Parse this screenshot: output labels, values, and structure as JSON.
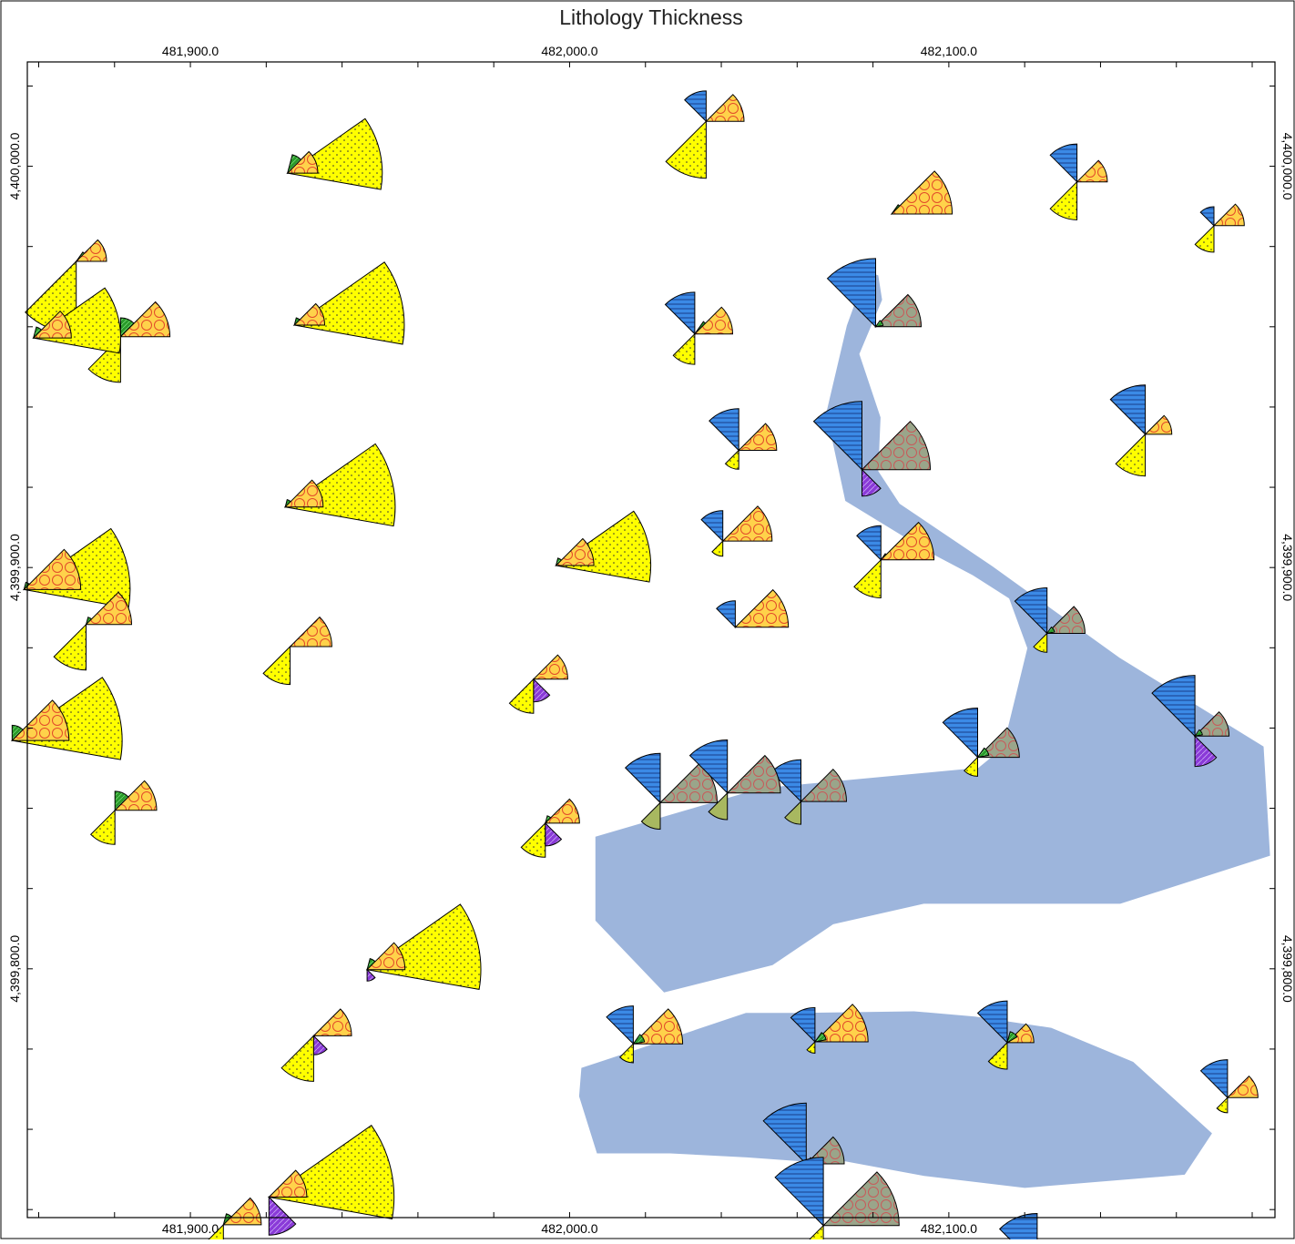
{
  "map": {
    "title": "Lithology Thickness",
    "x_ticks": [
      {
        "value": 481900,
        "label": "481,900.0"
      },
      {
        "value": 482000,
        "label": "482,000.0"
      },
      {
        "value": 482100,
        "label": "482,100.0"
      }
    ],
    "y_ticks": [
      {
        "value": 4400000,
        "label": "4,400,000.0"
      },
      {
        "value": 4399900,
        "label": "4,399,900.0"
      },
      {
        "value": 4399800,
        "label": "4,399,800.0"
      }
    ],
    "x_range": [
      481857,
      482186
    ],
    "y_range": [
      4399738,
      4400026
    ],
    "minor_step": 20,
    "colors": {
      "frame": "#000000",
      "region_fill": "#9db5dc",
      "sand": "#ffff00",
      "gravel": "#ffd24a",
      "gravel_circles": "#e24a2a",
      "limestone": "#3b8ae6",
      "limestone_lines": "#1a3f8a",
      "shale": "#9aa58a",
      "shale_circles": "#c85a5a",
      "green": "#2a9a2a",
      "purple": "#8a3ad8",
      "olive": "#a8b860"
    },
    "regions": [
      [
        [
          482078.3,
          4399973.8
        ],
        [
          482081.4,
          4399972.8
        ],
        [
          482082.4,
          4399966.7
        ],
        [
          482076.4,
          4399953.2
        ],
        [
          482082.0,
          4399937.4
        ],
        [
          482081.4,
          4399924.0
        ],
        [
          482087.0,
          4399915.9
        ],
        [
          482111.5,
          4399900.3
        ],
        [
          482145.0,
          4399877.5
        ],
        [
          482183.0,
          4399855.4
        ],
        [
          482184.7,
          4399828.2
        ],
        [
          482145.2,
          4399816.2
        ],
        [
          482093.4,
          4399816.2
        ],
        [
          482069.5,
          4399811.1
        ],
        [
          482053.5,
          4399800.9
        ],
        [
          482024.9,
          4399794.1
        ],
        [
          482006.8,
          4399812.0
        ],
        [
          482006.8,
          4399832.9
        ],
        [
          482050.5,
          4399845.0
        ],
        [
          482107.8,
          4399850.1
        ],
        [
          482114.3,
          4399855.1
        ],
        [
          482120.7,
          4399879.9
        ],
        [
          482115.9,
          4399892.3
        ],
        [
          482106.3,
          4399898.1
        ],
        [
          482095.2,
          4399903.6
        ],
        [
          482072.7,
          4399916.6
        ],
        [
          482067.7,
          4399938.6
        ],
        [
          482073.1,
          4399960.3
        ],
        [
          482078.3,
          4399973.8
        ]
      ],
      [
        [
          482046.7,
          4399753.0
        ],
        [
          482061.3,
          4399752.0
        ],
        [
          482072.7,
          4399752.0
        ],
        [
          482093.5,
          4399748.4
        ],
        [
          482120.0,
          4399745.4
        ],
        [
          482162.2,
          4399748.7
        ],
        [
          482169.4,
          4399759.0
        ],
        [
          482148.6,
          4399776.8
        ],
        [
          482127.0,
          4399785.3
        ],
        [
          482106.9,
          4399788.1
        ],
        [
          482090.8,
          4399789.4
        ],
        [
          482061.4,
          4399789.0
        ],
        [
          482046.5,
          4399789.0
        ],
        [
          482010.5,
          4399777.6
        ],
        [
          482003.1,
          4399775.3
        ],
        [
          482002.5,
          4399768.2
        ],
        [
          482007.2,
          4399754.0
        ],
        [
          482026.5,
          4399754.0
        ],
        [
          482046.7,
          4399753.0
        ]
      ]
    ],
    "wells": [
      {
        "x": 482036.0,
        "y": 4400011.2,
        "b": [
          [
            "sand",
            225,
            15
          ],
          [
            "limestone",
            90,
            8
          ],
          [
            "gravel",
            0,
            10
          ]
        ]
      },
      {
        "x": 481925.6,
        "y": 4399998.3,
        "b": [
          [
            "sand",
            -10,
            25
          ],
          [
            "green",
            30,
            5
          ],
          [
            "gravel",
            0,
            8
          ]
        ]
      },
      {
        "x": 482133.8,
        "y": 4399996.1,
        "b": [
          [
            "sand",
            225,
            10
          ],
          [
            "limestone",
            90,
            10
          ],
          [
            "gravel",
            0,
            8
          ]
        ]
      },
      {
        "x": 482084.9,
        "y": 4399988.1,
        "b": [
          [
            "green",
            10,
            3
          ],
          [
            "gravel",
            0,
            16
          ]
        ]
      },
      {
        "x": 482169.9,
        "y": 4399985.2,
        "b": [
          [
            "sand",
            225,
            7
          ],
          [
            "limestone",
            90,
            5
          ],
          [
            "gravel",
            0,
            8
          ]
        ]
      },
      {
        "x": 481927.4,
        "y": 4399960.4,
        "b": [
          [
            "sand",
            -10,
            29
          ],
          [
            "green",
            30,
            2
          ],
          [
            "gravel",
            0,
            8
          ]
        ]
      },
      {
        "x": 481869.9,
        "y": 4399976.3,
        "b": [
          [
            "sand",
            225,
            19
          ],
          [
            "green",
            10,
            3
          ],
          [
            "gravel",
            0,
            8
          ]
        ]
      },
      {
        "x": 481881.6,
        "y": 4399957.5,
        "b": [
          [
            "sand",
            225,
            12
          ],
          [
            "green",
            45,
            5
          ],
          [
            "gravel",
            0,
            13
          ]
        ]
      },
      {
        "x": 482033.0,
        "y": 4399958.2,
        "b": [
          [
            "sand",
            225,
            8
          ],
          [
            "limestone",
            90,
            11
          ],
          [
            "green",
            10,
            4
          ],
          [
            "gravel",
            0,
            10
          ]
        ]
      },
      {
        "x": 482080.7,
        "y": 4399960.0,
        "b": [
          [
            "limestone",
            90,
            18
          ],
          [
            "shale",
            0,
            12
          ],
          [
            "green",
            10,
            2
          ]
        ]
      },
      {
        "x": 481858.6,
        "y": 4399957.2,
        "b": [
          [
            "sand",
            -10,
            23
          ],
          [
            "green",
            30,
            3
          ],
          [
            "gravel",
            0,
            10
          ]
        ]
      },
      {
        "x": 482151.8,
        "y": 4399933.2,
        "b": [
          [
            "sand",
            225,
            11
          ],
          [
            "limestone",
            90,
            13
          ],
          [
            "gravel",
            0,
            7
          ]
        ]
      },
      {
        "x": 482044.6,
        "y": 4399929.2,
        "b": [
          [
            "sand",
            225,
            5
          ],
          [
            "limestone",
            90,
            11
          ],
          [
            "gravel",
            0,
            10
          ]
        ]
      },
      {
        "x": 482077.1,
        "y": 4399924.4,
        "b": [
          [
            "limestone",
            90,
            18
          ],
          [
            "shale",
            0,
            18
          ],
          [
            "purple",
            270,
            7
          ]
        ]
      },
      {
        "x": 481925.0,
        "y": 4399915.1,
        "b": [
          [
            "sand",
            -10,
            29
          ],
          [
            "green",
            30,
            2
          ],
          [
            "gravel",
            0,
            10
          ]
        ]
      },
      {
        "x": 481996.4,
        "y": 4399900.5,
        "b": [
          [
            "sand",
            -10,
            25
          ],
          [
            "green",
            30,
            2
          ],
          [
            "gravel",
            0,
            10
          ]
        ]
      },
      {
        "x": 482040.4,
        "y": 4399906.6,
        "b": [
          [
            "sand",
            225,
            4
          ],
          [
            "limestone",
            90,
            8
          ],
          [
            "gravel",
            0,
            13
          ]
        ]
      },
      {
        "x": 482082.1,
        "y": 4399901.9,
        "b": [
          [
            "sand",
            225,
            10
          ],
          [
            "limestone",
            90,
            9
          ],
          [
            "green",
            10,
            2
          ],
          [
            "gravel",
            0,
            14
          ]
        ]
      },
      {
        "x": 481856.1,
        "y": 4399894.5,
        "b": [
          [
            "sand",
            -10,
            28
          ],
          [
            "green",
            30,
            2
          ],
          [
            "gravel",
            0,
            15
          ]
        ]
      },
      {
        "x": 481872.5,
        "y": 4399885.8,
        "b": [
          [
            "sand",
            225,
            12
          ],
          [
            "green",
            30,
            2
          ],
          [
            "gravel",
            0,
            12
          ]
        ]
      },
      {
        "x": 482043.7,
        "y": 4399885.1,
        "b": [
          [
            "limestone",
            90,
            7
          ],
          [
            "gravel",
            0,
            14
          ]
        ]
      },
      {
        "x": 482125.9,
        "y": 4399883.6,
        "b": [
          [
            "sand",
            225,
            5
          ],
          [
            "limestone",
            90,
            12
          ],
          [
            "shale",
            0,
            10
          ],
          [
            "green",
            10,
            2
          ]
        ]
      },
      {
        "x": 481926.3,
        "y": 4399880.3,
        "b": [
          [
            "sand",
            225,
            10
          ],
          [
            "gravel",
            0,
            11
          ]
        ]
      },
      {
        "x": 481853.0,
        "y": 4399856.9,
        "b": [
          [
            "sand",
            -10,
            29
          ],
          [
            "green",
            45,
            4
          ],
          [
            "gravel",
            0,
            15
          ]
        ]
      },
      {
        "x": 481990.5,
        "y": 4399872.2,
        "b": [
          [
            "sand",
            225,
            9
          ],
          [
            "purple",
            270,
            6
          ],
          [
            "gravel",
            0,
            9
          ]
        ]
      },
      {
        "x": 482164.9,
        "y": 4399858.0,
        "b": [
          [
            "limestone",
            90,
            16
          ],
          [
            "shale",
            0,
            9
          ],
          [
            "purple",
            270,
            8
          ],
          [
            "green",
            10,
            2
          ]
        ]
      },
      {
        "x": 482107.6,
        "y": 4399852.7,
        "b": [
          [
            "sand",
            225,
            5
          ],
          [
            "limestone",
            90,
            13
          ],
          [
            "shale",
            0,
            11
          ],
          [
            "green",
            10,
            3
          ]
        ]
      },
      {
        "x": 481880.1,
        "y": 4399839.5,
        "b": [
          [
            "sand",
            225,
            9
          ],
          [
            "green",
            45,
            5
          ],
          [
            "gravel",
            0,
            11
          ]
        ]
      },
      {
        "x": 482023.9,
        "y": 4399841.4,
        "b": [
          [
            "olive",
            225,
            7
          ],
          [
            "limestone",
            90,
            13
          ],
          [
            "shale",
            0,
            15
          ]
        ]
      },
      {
        "x": 482061.0,
        "y": 4399841.7,
        "b": [
          [
            "olive",
            225,
            6
          ],
          [
            "limestone",
            90,
            11
          ],
          [
            "shale",
            0,
            12
          ]
        ]
      },
      {
        "x": 482041.6,
        "y": 4399843.8,
        "b": [
          [
            "olive",
            225,
            7
          ],
          [
            "limestone",
            90,
            14
          ],
          [
            "shale",
            0,
            14
          ]
        ]
      },
      {
        "x": 481993.6,
        "y": 4399836.3,
        "b": [
          [
            "sand",
            225,
            9
          ],
          [
            "green",
            30,
            2
          ],
          [
            "purple",
            270,
            6
          ],
          [
            "gravel",
            0,
            9
          ]
        ]
      },
      {
        "x": 481946.6,
        "y": 4399799.8,
        "b": [
          [
            "sand",
            -10,
            30
          ],
          [
            "green",
            30,
            3
          ],
          [
            "purple",
            270,
            3
          ],
          [
            "gravel",
            0,
            10
          ]
        ]
      },
      {
        "x": 481932.5,
        "y": 4399783.3,
        "b": [
          [
            "sand",
            225,
            12
          ],
          [
            "purple",
            270,
            5
          ],
          [
            "gravel",
            0,
            10
          ]
        ]
      },
      {
        "x": 482016.8,
        "y": 4399781.3,
        "b": [
          [
            "sand",
            225,
            5
          ],
          [
            "limestone",
            90,
            10
          ],
          [
            "gravel",
            0,
            13
          ],
          [
            "green",
            10,
            3
          ]
        ]
      },
      {
        "x": 482064.7,
        "y": 4399781.8,
        "b": [
          [
            "sand",
            225,
            3
          ],
          [
            "limestone",
            90,
            9
          ],
          [
            "gravel",
            0,
            14
          ],
          [
            "green",
            10,
            3
          ]
        ]
      },
      {
        "x": 482115.4,
        "y": 4399781.6,
        "b": [
          [
            "sand",
            225,
            7
          ],
          [
            "limestone",
            90,
            11
          ],
          [
            "gravel",
            0,
            7
          ],
          [
            "green",
            30,
            3
          ]
        ]
      },
      {
        "x": 482173.5,
        "y": 4399767.9,
        "b": [
          [
            "sand",
            225,
            4
          ],
          [
            "limestone",
            90,
            10
          ],
          [
            "gravel",
            0,
            8
          ]
        ]
      },
      {
        "x": 481920.7,
        "y": 4399743.1,
        "b": [
          [
            "sand",
            -10,
            33
          ],
          [
            "purple",
            270,
            10
          ],
          [
            "gravel",
            0,
            10
          ]
        ]
      },
      {
        "x": 482062.4,
        "y": 4399751.4,
        "b": [
          [
            "sand",
            225,
            4
          ],
          [
            "limestone",
            90,
            16
          ],
          [
            "shale",
            0,
            10
          ],
          [
            "green",
            10,
            2
          ]
        ]
      },
      {
        "x": 481908.7,
        "y": 4399736.2,
        "b": [
          [
            "sand",
            225,
            15
          ],
          [
            "green",
            30,
            3
          ],
          [
            "gravel",
            0,
            10
          ]
        ]
      },
      {
        "x": 482066.9,
        "y": 4399736.0,
        "b": [
          [
            "sand",
            225,
            5
          ],
          [
            "limestone",
            90,
            18
          ],
          [
            "shale",
            0,
            20
          ]
        ]
      },
      {
        "x": 482123.3,
        "y": 4399725.8,
        "b": [
          [
            "sand",
            225,
            4
          ],
          [
            "limestone",
            90,
            14
          ],
          [
            "shale",
            0,
            7
          ],
          [
            "green",
            45,
            5
          ]
        ]
      }
    ]
  }
}
